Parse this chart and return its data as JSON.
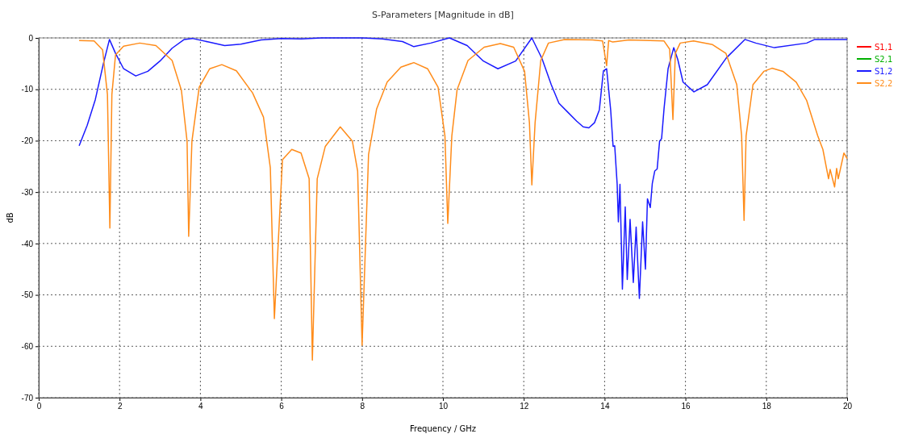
{
  "chart_data": {
    "type": "line",
    "title": "S-Parameters [Magnitude in dB]",
    "xlabel": "Frequency / GHz",
    "ylabel": "dB",
    "xlim": [
      0,
      20
    ],
    "xticks": [
      0,
      2,
      4,
      6,
      8,
      10,
      12,
      14,
      16,
      18,
      20
    ],
    "ylim": [
      -70,
      0
    ],
    "yticks": [
      -70,
      -60,
      -50,
      -40,
      -30,
      -20,
      -10,
      0
    ],
    "grid": true,
    "legend": "top right",
    "line_style": "solid",
    "marker": "none",
    "series": [
      {
        "name": "S1,1",
        "color": "#ff0000"
      },
      {
        "name": "S2,1",
        "color": "#00b000"
      },
      {
        "name": "S1,2",
        "color": "#1a1aff",
        "x": [
          1.0,
          1.2,
          1.4,
          1.6,
          1.75,
          1.9,
          2.1,
          2.4,
          2.7,
          3.0,
          3.3,
          3.6,
          3.8,
          4.2,
          4.6,
          5.0,
          5.5,
          6.0,
          6.5,
          7.0,
          8.0,
          8.5,
          9.0,
          9.28,
          9.7,
          10.16,
          10.6,
          11.0,
          11.36,
          11.8,
          12.2,
          12.45,
          12.68,
          12.87,
          13.07,
          13.31,
          13.47,
          13.61,
          13.75,
          13.87,
          13.97,
          14.05,
          14.15,
          14.21,
          14.25,
          14.31,
          14.34,
          14.38,
          14.44,
          14.51,
          14.56,
          14.63,
          14.71,
          14.78,
          14.86,
          14.94,
          15.01,
          15.06,
          15.13,
          15.18,
          15.24,
          15.3,
          15.36,
          15.41,
          15.47,
          15.57,
          15.71,
          15.81,
          15.94,
          16.21,
          16.54,
          17.01,
          17.47,
          17.74,
          18.2,
          19.0,
          19.2,
          20.0
        ],
        "values": [
          -21,
          -17,
          -12,
          -5,
          -0.3,
          -3,
          -6,
          -7.4,
          -6.5,
          -4.5,
          -2,
          -0.3,
          -0.1,
          -0.8,
          -1.5,
          -1.2,
          -0.4,
          -0.1,
          -0.2,
          0,
          0,
          -0.2,
          -0.7,
          -1.7,
          -1.0,
          0,
          -1.5,
          -4.5,
          -6,
          -4.5,
          0,
          -4,
          -9.1,
          -12.7,
          -14.3,
          -16.2,
          -17.3,
          -17.5,
          -16.5,
          -14,
          -6.4,
          -6,
          -14,
          -21.1,
          -21,
          -28.4,
          -35.8,
          -28.5,
          -48.9,
          -32.9,
          -47,
          -35.3,
          -47.6,
          -36.8,
          -50.7,
          -35.8,
          -45,
          -31.3,
          -33,
          -28.3,
          -25.9,
          -25.5,
          -20.1,
          -19.6,
          -13.8,
          -6,
          -1.9,
          -4.2,
          -8.6,
          -10.5,
          -9.1,
          -3.9,
          -0.3,
          -1.0,
          -1.9,
          -1.0,
          -0.3,
          -0.3
        ]
      },
      {
        "name": "S2,2",
        "color": "#ff8c1a",
        "x": [
          1.0,
          1.37,
          1.58,
          1.7,
          1.76,
          1.81,
          1.9,
          2.1,
          2.5,
          2.9,
          3.3,
          3.53,
          3.67,
          3.71,
          3.79,
          3.97,
          4.23,
          4.53,
          4.89,
          5.29,
          5.56,
          5.73,
          5.83,
          6.03,
          6.26,
          6.49,
          6.69,
          6.77,
          6.89,
          7.09,
          7.46,
          7.76,
          7.89,
          8.0,
          8.16,
          8.36,
          8.62,
          8.96,
          9.28,
          9.62,
          9.88,
          10.05,
          10.12,
          10.22,
          10.35,
          10.62,
          11.02,
          11.42,
          11.75,
          12.02,
          12.14,
          12.2,
          12.28,
          12.42,
          12.61,
          13.01,
          13.7,
          13.95,
          14.05,
          14.1,
          14.2,
          14.6,
          15.47,
          15.61,
          15.69,
          15.75,
          15.87,
          16.2,
          16.67,
          17.0,
          17.27,
          17.39,
          17.45,
          17.5,
          17.67,
          17.94,
          18.14,
          18.41,
          18.74,
          19.0,
          19.27,
          19.4,
          19.54,
          19.58,
          19.69,
          19.74,
          19.78,
          19.92,
          20.0
        ],
        "values": [
          -0.5,
          -0.6,
          -2.3,
          -11,
          -37,
          -11,
          -3.3,
          -1.6,
          -1.0,
          -1.5,
          -4.4,
          -10.2,
          -20.1,
          -38.6,
          -20.1,
          -9.6,
          -6,
          -5.2,
          -6.4,
          -10.7,
          -15.4,
          -25.3,
          -54.6,
          -23.7,
          -21.7,
          -22.4,
          -27.4,
          -62.7,
          -27.4,
          -21.1,
          -17.3,
          -20.1,
          -25.9,
          -59.8,
          -22.7,
          -13.8,
          -8.6,
          -5.7,
          -4.8,
          -6,
          -9.6,
          -19.1,
          -36.1,
          -19.1,
          -10.1,
          -4.4,
          -1.8,
          -1.1,
          -1.8,
          -6.5,
          -16.5,
          -28.6,
          -16.5,
          -4.4,
          -1.0,
          -0.3,
          -0.4,
          -0.6,
          -5.4,
          -0.5,
          -0.8,
          -0.4,
          -0.6,
          -2.2,
          -15.9,
          -3.0,
          -1.0,
          -0.6,
          -1.3,
          -3.0,
          -9.1,
          -19.1,
          -35.5,
          -19.1,
          -9.1,
          -6.5,
          -5.9,
          -6.5,
          -8.6,
          -12.2,
          -19,
          -21.7,
          -27.4,
          -25.6,
          -29,
          -25.4,
          -27.4,
          -22.4,
          -23.5
        ]
      }
    ]
  }
}
